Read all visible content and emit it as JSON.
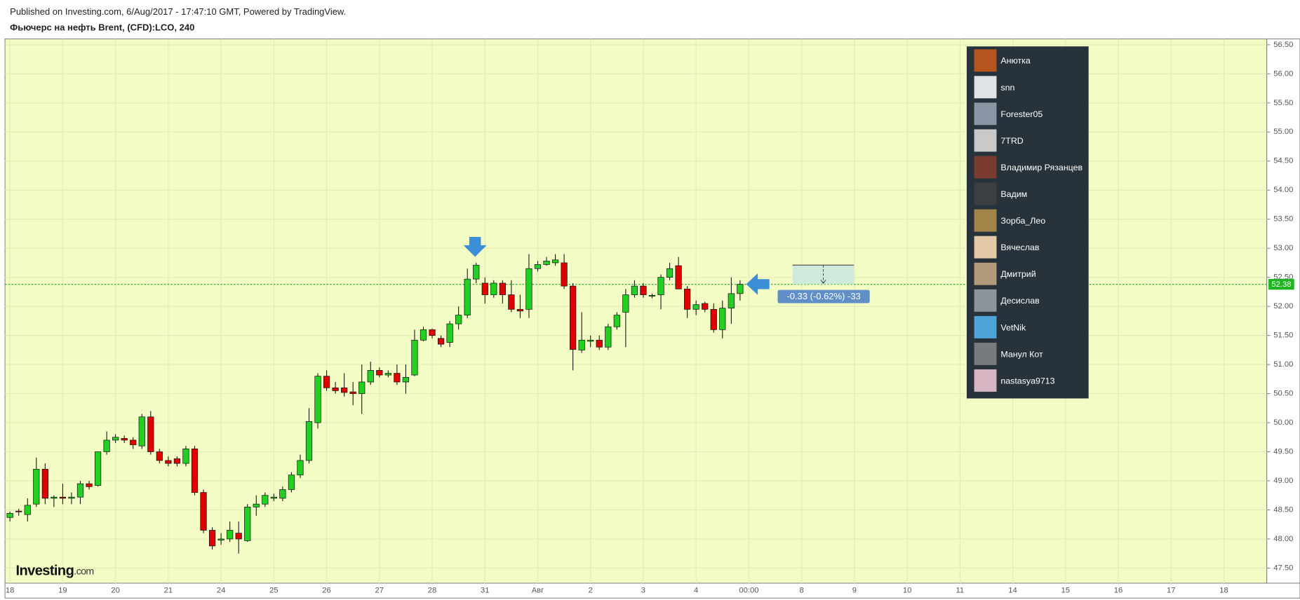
{
  "header": {
    "published": "Published on Investing.com, 6/Aug/2017 - 17:47:10 GMT, Powered by TradingView.",
    "symbol": "Фьючерс на нефть Brent, (CFD):LCO, 240"
  },
  "watermark": {
    "brand": "Investing",
    "suffix": ".com"
  },
  "viewers": [
    "Анютка",
    "snn",
    "Forester05",
    "7TRD",
    "Владимир Рязанцев",
    "Вадим",
    "Зорба_Лео",
    "Вячеслав",
    "Дмитрий",
    "Десислав",
    "VetNik",
    "Манул Кот",
    "nastasya9713"
  ],
  "chart_data": {
    "type": "candlestick",
    "up_color": "#22d022",
    "down_color": "#e00000",
    "grid": true,
    "ylim": [
      47.24,
      56.6
    ],
    "yticks": [
      {
        "value": 47.5,
        "label": "47.50"
      },
      {
        "value": 48,
        "label": "48.00"
      },
      {
        "value": 48.5,
        "label": "48.50"
      },
      {
        "value": 49,
        "label": "49.00"
      },
      {
        "value": 49.5,
        "label": "49.50"
      },
      {
        "value": 50,
        "label": "50.00"
      },
      {
        "value": 50.5,
        "label": "50.50"
      },
      {
        "value": 51,
        "label": "51.00"
      },
      {
        "value": 51.5,
        "label": "51.50"
      },
      {
        "value": 52,
        "label": "52.00"
      },
      {
        "value": 52.5,
        "label": "52.50"
      },
      {
        "value": 53,
        "label": "53.00"
      },
      {
        "value": 53.5,
        "label": "53.50"
      },
      {
        "value": 54,
        "label": "54.00"
      },
      {
        "value": 54.5,
        "label": "54.50"
      },
      {
        "value": 55,
        "label": "55.00"
      },
      {
        "value": 55.5,
        "label": "55.50"
      },
      {
        "value": 56,
        "label": "56.00"
      },
      {
        "value": 56.5,
        "label": "56.50"
      }
    ],
    "last_price": 52.38,
    "annotation": "-0.33 (-0.62%) -33",
    "categories": [
      "18",
      null,
      null,
      null,
      null,
      null,
      "19",
      null,
      null,
      null,
      null,
      null,
      "20",
      null,
      null,
      null,
      null,
      null,
      "21",
      null,
      null,
      null,
      null,
      null,
      "24",
      null,
      null,
      null,
      null,
      null,
      "25",
      null,
      null,
      null,
      null,
      null,
      "26",
      null,
      null,
      null,
      null,
      null,
      "27",
      null,
      null,
      null,
      null,
      null,
      "28",
      null,
      null,
      null,
      null,
      null,
      "31",
      null,
      null,
      null,
      null,
      null,
      "Авг",
      null,
      null,
      null,
      null,
      null,
      "2",
      null,
      null,
      null,
      null,
      null,
      "3",
      null,
      null,
      null,
      null,
      null,
      "4",
      null,
      null,
      null,
      null,
      null,
      "00:00",
      null,
      null,
      null,
      null,
      null,
      "8",
      null,
      null,
      null,
      null,
      null,
      "9",
      null,
      null,
      null,
      null,
      null,
      "10",
      null,
      null,
      null,
      null,
      null,
      "11",
      null,
      null,
      null,
      null,
      null,
      "14",
      null,
      null,
      null,
      null,
      null,
      "15",
      null,
      null,
      null,
      null,
      null,
      "16",
      null,
      null,
      null,
      null,
      null,
      "17",
      null,
      null,
      null,
      null,
      null,
      "18",
      null,
      null,
      null,
      null
    ],
    "open": [
      48.37,
      48.48,
      48.42,
      48.6,
      49.2,
      48.7,
      48.72,
      48.7,
      48.72,
      48.95,
      48.92,
      49.5,
      49.7,
      49.73,
      49.7,
      49.6,
      50.1,
      49.5,
      49.35,
      49.38,
      49.3,
      49.55,
      48.8,
      48.15,
      47.98,
      48.0,
      48.1,
      47.97,
      48.55,
      48.6,
      48.7,
      48.7,
      48.85,
      49.1,
      49.35,
      50.0,
      50.8,
      50.6,
      50.6,
      50.53,
      50.5,
      50.7,
      50.9,
      50.82,
      50.85,
      50.7,
      50.82,
      51.42,
      51.6,
      51.45,
      51.38,
      51.7,
      51.85,
      52.47,
      52.4,
      52.2,
      52.4,
      52.2,
      51.95,
      51.95,
      52.65,
      52.72,
      52.75,
      52.75,
      52.35,
      51.25,
      51.4,
      51.42,
      51.3,
      51.65,
      51.9,
      52.2,
      52.35,
      52.18,
      52.2,
      52.5,
      52.7,
      52.3,
      51.95,
      52.05,
      51.95,
      51.6,
      51.97,
      52.22,
      null,
      null,
      null,
      null,
      null,
      null,
      null,
      null,
      null,
      null,
      null,
      null,
      null,
      null,
      null,
      null,
      null,
      null,
      null,
      null,
      null,
      null,
      null,
      null,
      null,
      null,
      null,
      null,
      null,
      null,
      null,
      null,
      null,
      null,
      null,
      null,
      null,
      null,
      null,
      null,
      null,
      null,
      null,
      null,
      null,
      null,
      null,
      null,
      null,
      null,
      null,
      null,
      null,
      null,
      null,
      null,
      null,
      null,
      null
    ],
    "high": [
      48.47,
      48.52,
      48.7,
      49.4,
      49.3,
      48.75,
      48.95,
      48.8,
      49.0,
      49.0,
      49.5,
      49.85,
      49.8,
      49.78,
      49.75,
      50.15,
      50.2,
      49.55,
      49.42,
      49.42,
      49.6,
      49.6,
      48.85,
      48.2,
      48.1,
      48.3,
      48.3,
      48.6,
      48.75,
      48.8,
      48.78,
      48.9,
      49.15,
      49.45,
      50.25,
      50.85,
      50.9,
      50.7,
      50.85,
      50.7,
      51.0,
      51.05,
      50.95,
      50.9,
      51.0,
      51.0,
      51.6,
      51.65,
      51.62,
      51.5,
      51.75,
      52.0,
      52.65,
      52.75,
      52.5,
      52.45,
      52.45,
      52.45,
      52.2,
      52.9,
      52.78,
      52.85,
      52.9,
      52.9,
      52.4,
      51.9,
      51.5,
      51.5,
      51.7,
      51.9,
      52.3,
      52.45,
      52.4,
      52.22,
      52.55,
      52.75,
      52.85,
      52.35,
      52.1,
      52.08,
      52.05,
      52.1,
      52.5,
      52.45,
      null,
      null,
      null,
      null,
      null,
      null,
      null,
      null,
      null,
      null,
      null,
      null,
      null,
      null,
      null,
      null,
      null,
      null,
      null,
      null,
      null,
      null,
      null,
      null,
      null,
      null,
      null,
      null,
      null,
      null,
      null,
      null,
      null,
      null,
      null,
      null,
      null,
      null,
      null,
      null,
      null,
      null,
      null,
      null,
      null,
      null,
      null,
      null,
      null,
      null,
      null,
      null,
      null,
      null,
      null,
      null,
      null,
      null,
      null
    ],
    "low": [
      48.3,
      48.4,
      48.3,
      48.55,
      48.6,
      48.55,
      48.6,
      48.6,
      48.6,
      48.85,
      48.9,
      49.45,
      49.65,
      49.65,
      49.55,
      49.55,
      49.45,
      49.3,
      49.25,
      49.25,
      49.25,
      48.75,
      48.1,
      47.82,
      47.9,
      47.95,
      47.75,
      47.95,
      48.4,
      48.55,
      48.65,
      48.65,
      48.8,
      49.05,
      49.3,
      49.9,
      50.55,
      50.5,
      50.45,
      50.3,
      50.15,
      50.65,
      50.78,
      50.78,
      50.65,
      50.5,
      50.8,
      51.4,
      51.45,
      51.3,
      51.3,
      51.6,
      51.8,
      52.4,
      52.05,
      52.15,
      52.05,
      51.9,
      51.8,
      51.8,
      52.6,
      52.7,
      52.7,
      52.3,
      50.9,
      51.2,
      51.3,
      51.25,
      51.25,
      51.6,
      51.3,
      52.15,
      52.15,
      52.14,
      51.95,
      52.45,
      52.3,
      51.8,
      51.85,
      51.9,
      51.55,
      51.45,
      51.7,
      52.1,
      null,
      null,
      null,
      null,
      null,
      null,
      null,
      null,
      null,
      null,
      null,
      null,
      null,
      null,
      null,
      null,
      null,
      null,
      null,
      null,
      null,
      null,
      null,
      null,
      null,
      null,
      null,
      null,
      null,
      null,
      null,
      null,
      null,
      null,
      null,
      null,
      null,
      null,
      null,
      null,
      null,
      null,
      null,
      null,
      null,
      null,
      null,
      null,
      null,
      null,
      null,
      null,
      null,
      null,
      null,
      null,
      null,
      null,
      null
    ],
    "close": [
      48.44,
      48.47,
      48.58,
      49.2,
      48.7,
      48.72,
      48.7,
      48.72,
      48.95,
      48.9,
      49.5,
      49.7,
      49.75,
      49.7,
      49.62,
      50.1,
      49.5,
      49.35,
      49.3,
      49.3,
      49.55,
      48.8,
      48.15,
      47.88,
      48.0,
      48.15,
      48.0,
      48.55,
      48.6,
      48.75,
      48.72,
      48.85,
      49.1,
      49.35,
      50.02,
      50.8,
      50.6,
      50.55,
      50.52,
      50.5,
      50.7,
      50.9,
      50.82,
      50.85,
      50.7,
      50.78,
      51.42,
      51.6,
      51.5,
      51.35,
      51.7,
      51.85,
      52.47,
      52.71,
      52.2,
      52.4,
      52.2,
      51.95,
      51.92,
      52.65,
      52.72,
      52.78,
      52.8,
      52.35,
      51.26,
      51.42,
      51.42,
      51.3,
      51.65,
      51.85,
      52.2,
      52.35,
      52.2,
      52.19,
      52.5,
      52.65,
      52.3,
      51.95,
      52.03,
      51.95,
      51.6,
      51.97,
      52.22,
      52.38,
      null,
      null,
      null,
      null,
      null,
      null,
      null,
      null,
      null,
      null,
      null,
      null,
      null,
      null,
      null,
      null,
      null,
      null,
      null,
      null,
      null,
      null,
      null,
      null,
      null,
      null,
      null,
      null,
      null,
      null,
      null,
      null,
      null,
      null,
      null,
      null,
      null,
      null,
      null,
      null,
      null,
      null,
      null,
      null,
      null,
      null,
      null,
      null,
      null,
      null,
      null,
      null,
      null,
      null,
      null,
      null,
      null,
      null,
      null
    ]
  }
}
